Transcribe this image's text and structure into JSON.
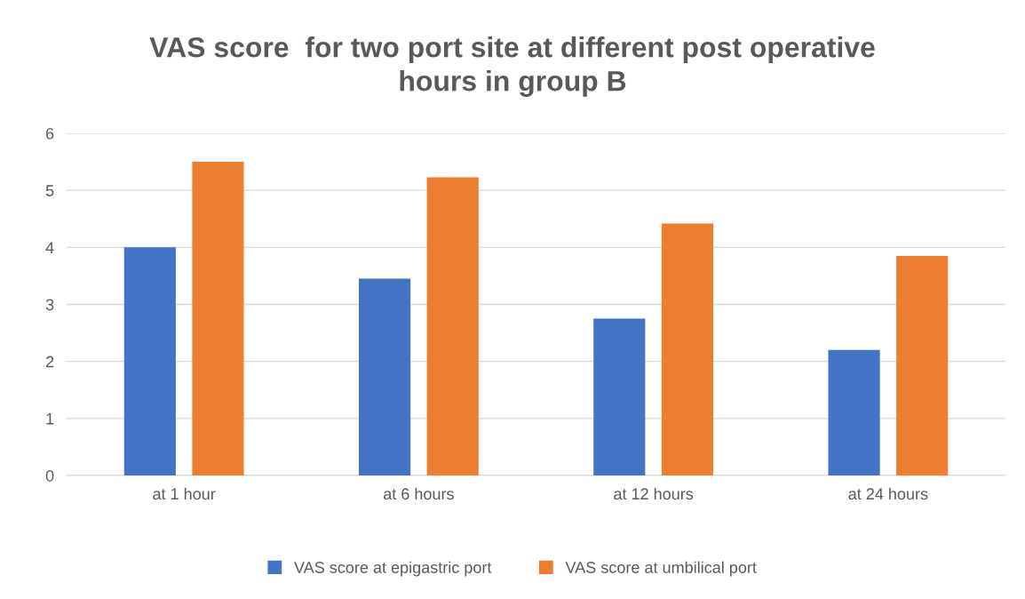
{
  "chart_data": {
    "type": "bar",
    "title": "VAS score  for two port site at different post operative\nhours in group B",
    "categories": [
      "at 1 hour",
      "at 6 hours",
      "at 12 hours",
      "at 24 hours"
    ],
    "series": [
      {
        "name": "VAS score at epigastric port",
        "color": "#4472c4",
        "values": [
          4.0,
          3.45,
          2.75,
          2.2
        ]
      },
      {
        "name": "VAS score at umbilical port",
        "color": "#ed7d31",
        "values": [
          5.5,
          5.23,
          4.42,
          3.85
        ]
      }
    ],
    "ylim": [
      0,
      6
    ],
    "yticks": [
      0,
      1,
      2,
      3,
      4,
      5,
      6
    ],
    "grid": "y",
    "legend": "bottom"
  }
}
